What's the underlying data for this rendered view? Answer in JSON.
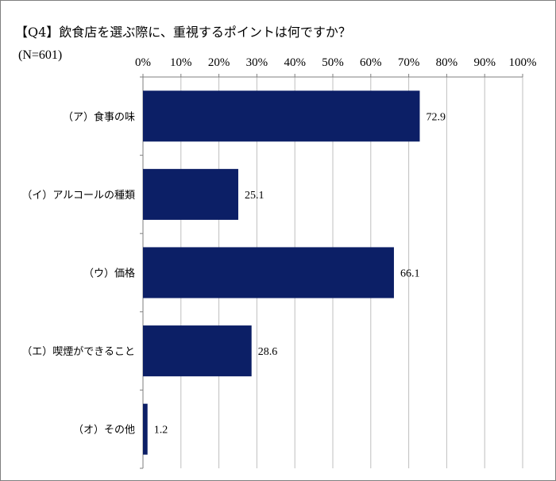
{
  "title": "【Q4】飲食店を選ぶ際に、重視するポイントは何ですか？",
  "sample_size": "(N=601)",
  "colors": {
    "bar": "#0c1f66",
    "grid": "#bfbfbf",
    "axis": "#7f7f7f"
  },
  "chart_data": {
    "type": "bar",
    "orientation": "horizontal",
    "title": "【Q4】飲食店を選ぶ際に、重視するポイントは何ですか？",
    "categories": [
      "（ア）食事の味",
      "（イ）アルコールの種類",
      "（ウ）価格",
      "（エ）喫煙ができること",
      "（オ）その他"
    ],
    "values": [
      72.9,
      25.1,
      66.1,
      28.6,
      1.2
    ],
    "data_labels": [
      "72.9",
      "25.1",
      "66.1",
      "28.6",
      "1.2"
    ],
    "xlim": [
      0,
      100
    ],
    "x_ticks": [
      "0%",
      "10%",
      "20%",
      "30%",
      "40%",
      "50%",
      "60%",
      "70%",
      "80%",
      "90%",
      "100%"
    ],
    "x_axis_position": "top",
    "grid": true,
    "legend": "none"
  }
}
